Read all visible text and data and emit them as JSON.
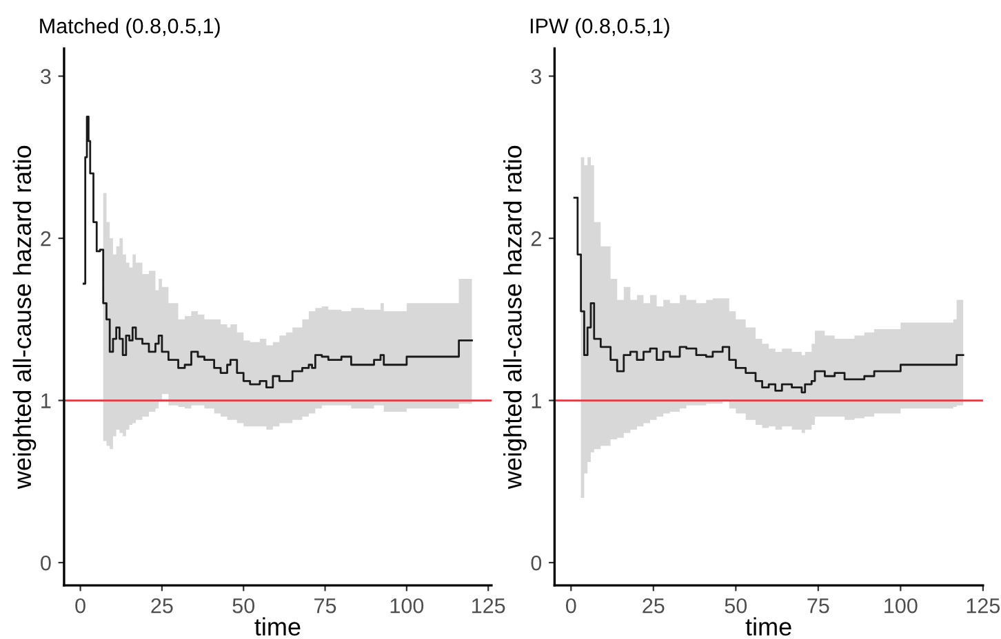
{
  "chart_data": [
    {
      "type": "step",
      "title": "Matched (0.8,0.5,1)",
      "xlabel": "time",
      "ylabel": "weighted all-cause hazard ratio",
      "xlim": [
        -5,
        126
      ],
      "xticks": [
        0,
        25,
        50,
        75,
        100,
        125
      ],
      "ylim": [
        -0.14,
        3.17
      ],
      "yticks": [
        0,
        1,
        2,
        3
      ],
      "grid": false,
      "legend": false,
      "ref_lines": [
        {
          "axis": "y",
          "value": 1,
          "color": "#e8383b"
        }
      ],
      "series": [
        {
          "color": "#1a1a1a",
          "x": [
            1,
            1.5,
            2,
            2.5,
            3,
            4,
            5,
            6,
            7,
            8,
            9,
            10,
            11,
            12,
            13,
            14,
            15,
            16,
            17,
            19,
            21,
            23,
            24,
            25,
            27,
            30,
            32,
            34,
            36,
            38,
            41,
            43,
            45,
            46,
            48,
            50,
            52,
            55,
            57,
            59,
            61,
            63,
            65,
            68,
            70,
            71,
            72,
            74,
            76,
            80,
            83,
            87,
            90,
            92,
            93,
            96,
            100,
            105,
            115,
            116,
            120
          ],
          "values": [
            1.72,
            2.5,
            2.75,
            2.6,
            2.4,
            2.1,
            1.92,
            1.93,
            1.6,
            1.5,
            1.3,
            1.38,
            1.45,
            1.38,
            1.28,
            1.4,
            1.37,
            1.45,
            1.38,
            1.35,
            1.3,
            1.35,
            1.4,
            1.3,
            1.25,
            1.2,
            1.22,
            1.3,
            1.27,
            1.25,
            1.2,
            1.17,
            1.22,
            1.25,
            1.17,
            1.12,
            1.1,
            1.12,
            1.08,
            1.15,
            1.12,
            1.12,
            1.18,
            1.2,
            1.22,
            1.2,
            1.28,
            1.27,
            1.25,
            1.27,
            1.22,
            1.22,
            1.25,
            1.28,
            1.22,
            1.22,
            1.27,
            1.27,
            1.27,
            1.37,
            1.37
          ],
          "lower": [
            null,
            null,
            null,
            null,
            null,
            null,
            null,
            null,
            0.75,
            0.72,
            0.7,
            0.78,
            0.82,
            0.8,
            0.78,
            0.82,
            0.85,
            0.86,
            0.88,
            0.9,
            0.93,
            0.95,
            1.0,
            1.04,
            0.97,
            0.96,
            0.95,
            0.97,
            0.97,
            0.95,
            0.92,
            0.9,
            0.88,
            0.88,
            0.86,
            0.84,
            0.84,
            0.84,
            0.82,
            0.84,
            0.86,
            0.86,
            0.88,
            0.9,
            0.92,
            0.92,
            0.95,
            0.97,
            0.97,
            0.97,
            0.95,
            0.95,
            0.97,
            0.97,
            0.93,
            0.93,
            0.95,
            0.95,
            0.95,
            0.98,
            0.98
          ],
          "upper": [
            null,
            null,
            null,
            null,
            null,
            null,
            null,
            null,
            2.28,
            2.1,
            2.0,
            1.9,
            1.95,
            2.0,
            1.9,
            1.85,
            1.82,
            1.9,
            1.85,
            1.78,
            1.8,
            1.68,
            1.75,
            1.7,
            1.6,
            1.5,
            1.52,
            1.55,
            1.53,
            1.5,
            1.5,
            1.47,
            1.45,
            1.47,
            1.42,
            1.37,
            1.36,
            1.38,
            1.34,
            1.36,
            1.4,
            1.42,
            1.45,
            1.5,
            1.55,
            1.55,
            1.57,
            1.58,
            1.56,
            1.55,
            1.57,
            1.56,
            1.56,
            1.6,
            1.55,
            1.55,
            1.6,
            1.6,
            1.6,
            1.75,
            1.75
          ]
        }
      ]
    },
    {
      "type": "step",
      "title": "IPW (0.8,0.5,1)",
      "xlabel": "time",
      "ylabel": "weighted all-cause hazard ratio",
      "xlim": [
        -5,
        125
      ],
      "xticks": [
        0,
        25,
        50,
        75,
        100,
        125
      ],
      "ylim": [
        -0.14,
        3.17
      ],
      "yticks": [
        0,
        1,
        2,
        3
      ],
      "grid": false,
      "legend": false,
      "ref_lines": [
        {
          "axis": "y",
          "value": 1,
          "color": "#e8383b"
        }
      ],
      "series": [
        {
          "color": "#1a1a1a",
          "x": [
            1,
            2,
            3,
            4,
            5,
            6,
            7,
            9,
            12,
            14,
            16,
            18,
            20,
            22,
            24,
            26,
            28,
            30,
            33,
            35,
            38,
            41,
            43,
            46,
            48,
            50,
            53,
            56,
            58,
            60,
            62,
            64,
            67,
            70,
            71,
            73,
            74,
            77,
            80,
            83,
            86,
            89,
            92,
            100,
            116,
            117,
            119
          ],
          "values": [
            2.25,
            1.9,
            1.55,
            1.28,
            1.45,
            1.6,
            1.38,
            1.33,
            1.25,
            1.18,
            1.28,
            1.3,
            1.25,
            1.3,
            1.32,
            1.25,
            1.3,
            1.27,
            1.33,
            1.32,
            1.28,
            1.27,
            1.3,
            1.33,
            1.25,
            1.2,
            1.17,
            1.12,
            1.08,
            1.1,
            1.06,
            1.1,
            1.08,
            1.05,
            1.1,
            1.12,
            1.18,
            1.15,
            1.17,
            1.13,
            1.13,
            1.15,
            1.18,
            1.22,
            1.22,
            1.28,
            1.28
          ],
          "lower": [
            null,
            null,
            0.4,
            0.55,
            0.62,
            0.68,
            0.7,
            0.72,
            0.76,
            0.77,
            0.8,
            0.82,
            0.84,
            0.86,
            0.88,
            0.9,
            0.92,
            0.93,
            0.95,
            0.97,
            0.97,
            0.98,
            0.98,
            1.0,
            0.95,
            0.92,
            0.88,
            0.85,
            0.83,
            0.84,
            0.82,
            0.84,
            0.82,
            0.8,
            0.82,
            0.85,
            0.9,
            0.9,
            0.9,
            0.88,
            0.89,
            0.9,
            0.92,
            0.95,
            0.96,
            0.97,
            0.97
          ],
          "upper": [
            null,
            null,
            2.5,
            2.45,
            2.5,
            2.45,
            2.1,
            1.95,
            1.75,
            1.62,
            1.7,
            1.62,
            1.65,
            1.6,
            1.65,
            1.58,
            1.62,
            1.6,
            1.65,
            1.62,
            1.6,
            1.62,
            1.63,
            1.63,
            1.55,
            1.5,
            1.45,
            1.38,
            1.35,
            1.32,
            1.3,
            1.32,
            1.3,
            1.28,
            1.3,
            1.35,
            1.43,
            1.4,
            1.38,
            1.38,
            1.4,
            1.42,
            1.44,
            1.48,
            1.5,
            1.62,
            1.62
          ]
        }
      ]
    }
  ]
}
